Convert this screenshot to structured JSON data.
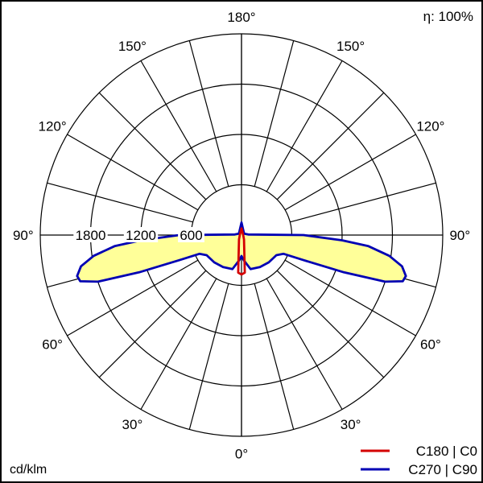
{
  "header": {
    "efficiency": "η: 100%"
  },
  "footer": {
    "unit": "cd/klm"
  },
  "chart_data": {
    "type": "polar",
    "radial_unit": "cd/klm",
    "radial_ticks": [
      600,
      1200,
      1800
    ],
    "radial_tick_labels": [
      "600",
      "1200",
      "1800"
    ],
    "rmax": 2400,
    "angle_step_deg": 15,
    "angle_labels": [
      {
        "deg": 0,
        "text": "0°"
      },
      {
        "deg": 30,
        "text": "30°",
        "side": "left"
      },
      {
        "deg": 30,
        "text": "30°",
        "side": "right"
      },
      {
        "deg": 60,
        "text": "60°",
        "side": "left"
      },
      {
        "deg": 60,
        "text": "60°",
        "side": "right"
      },
      {
        "deg": 90,
        "text": "90°",
        "side": "left"
      },
      {
        "deg": 90,
        "text": "90°",
        "side": "right"
      },
      {
        "deg": 120,
        "text": "120°",
        "side": "left"
      },
      {
        "deg": 120,
        "text": "120°",
        "side": "right"
      },
      {
        "deg": 150,
        "text": "150°",
        "side": "left"
      },
      {
        "deg": 150,
        "text": "150°",
        "side": "right"
      },
      {
        "deg": 180,
        "text": "180°"
      }
    ],
    "series": [
      {
        "name": "C180 | C0",
        "color": "#d40000",
        "points": [
          {
            "gamma": -180,
            "r": 80
          },
          {
            "gamma": -90,
            "r": 20
          },
          {
            "gamma": -30,
            "r": 60
          },
          {
            "gamma": -5,
            "r": 450
          },
          {
            "gamma": 0,
            "r": 470
          },
          {
            "gamma": 5,
            "r": 450
          },
          {
            "gamma": 30,
            "r": 60
          },
          {
            "gamma": 90,
            "r": 20
          },
          {
            "gamma": 180,
            "r": 80
          }
        ]
      },
      {
        "name": "C270 | C90",
        "color": "#0000b4",
        "fill": "#ffff99",
        "points": [
          {
            "gamma": -180,
            "r": 150
          },
          {
            "gamma": -120,
            "r": 35
          },
          {
            "gamma": -95,
            "r": 80
          },
          {
            "gamma": -90,
            "r": 740
          },
          {
            "gamma": -87,
            "r": 1200
          },
          {
            "gamma": -85,
            "r": 1520
          },
          {
            "gamma": -82,
            "r": 1780
          },
          {
            "gamma": -79,
            "r": 1950
          },
          {
            "gamma": -76,
            "r": 2020
          },
          {
            "gamma": -74,
            "r": 2000
          },
          {
            "gamma": -72,
            "r": 1800
          },
          {
            "gamma": -70,
            "r": 1300
          },
          {
            "gamma": -68,
            "r": 800
          },
          {
            "gamma": -66,
            "r": 550
          },
          {
            "gamma": -60,
            "r": 480
          },
          {
            "gamma": -45,
            "r": 460
          },
          {
            "gamma": -30,
            "r": 440
          },
          {
            "gamma": -15,
            "r": 420
          },
          {
            "gamma": -5,
            "r": 300
          },
          {
            "gamma": 0,
            "r": 250
          },
          {
            "gamma": 5,
            "r": 300
          },
          {
            "gamma": 15,
            "r": 420
          },
          {
            "gamma": 30,
            "r": 440
          },
          {
            "gamma": 45,
            "r": 460
          },
          {
            "gamma": 60,
            "r": 480
          },
          {
            "gamma": 66,
            "r": 550
          },
          {
            "gamma": 68,
            "r": 800
          },
          {
            "gamma": 70,
            "r": 1300
          },
          {
            "gamma": 72,
            "r": 1800
          },
          {
            "gamma": 74,
            "r": 2000
          },
          {
            "gamma": 76,
            "r": 2020
          },
          {
            "gamma": 79,
            "r": 1950
          },
          {
            "gamma": 82,
            "r": 1780
          },
          {
            "gamma": 85,
            "r": 1520
          },
          {
            "gamma": 87,
            "r": 1200
          },
          {
            "gamma": 90,
            "r": 740
          },
          {
            "gamma": 95,
            "r": 80
          },
          {
            "gamma": 120,
            "r": 35
          },
          {
            "gamma": 180,
            "r": 150
          }
        ]
      }
    ],
    "legend": [
      {
        "text": "C180 | C0",
        "color": "#d40000"
      },
      {
        "text": "C270 | C90",
        "color": "#0000b4"
      }
    ],
    "legend_position": "bottom-right",
    "grid": true
  }
}
